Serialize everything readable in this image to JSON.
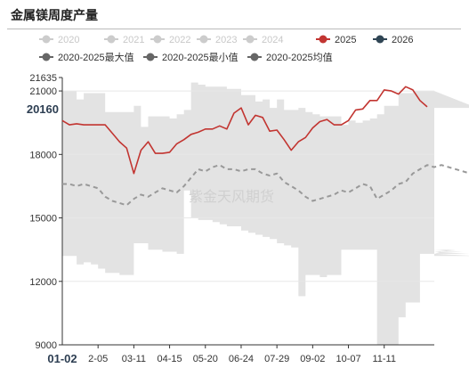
{
  "title": "金属镁周度产量",
  "watermark": "紫金天风期货",
  "chart_data": {
    "type": "line",
    "title": "金属镁周度产量",
    "xlabel": "",
    "ylabel": "",
    "ylim": [
      9000,
      21635
    ],
    "yticks": [
      9000,
      12000,
      15000,
      18000,
      21000,
      21635
    ],
    "highlight_y": 20160,
    "x_start_label": "01-02",
    "xticks": [
      "2-05",
      "03-11",
      "04-15",
      "05-20",
      "06-24",
      "07-29",
      "09-02",
      "10-07",
      "11-11"
    ],
    "legend": {
      "position": "top",
      "items": [
        {
          "name": "2020",
          "color": "#cccccc",
          "active": false
        },
        {
          "name": "2021",
          "color": "#cccccc",
          "active": false
        },
        {
          "name": "2022",
          "color": "#cccccc",
          "active": false
        },
        {
          "name": "2023",
          "color": "#cccccc",
          "active": false
        },
        {
          "name": "2024",
          "color": "#cccccc",
          "active": false
        },
        {
          "name": "2025",
          "color": "#c23531",
          "active": true
        },
        {
          "name": "2026",
          "color": "#2f4554",
          "active": true
        },
        {
          "name": "2020-2025最大值",
          "color": "#666666",
          "active": true
        },
        {
          "name": "2020-2025最小值",
          "color": "#666666",
          "active": true
        },
        {
          "name": "2020-2025均值",
          "color": "#666666",
          "active": true
        }
      ]
    },
    "band_max": [
      21000,
      21000,
      20600,
      20900,
      20900,
      20900,
      20000,
      20000,
      20000,
      20000,
      20300,
      19300,
      19800,
      19800,
      19800,
      19700,
      19900,
      20100,
      21400,
      21300,
      21200,
      21200,
      21200,
      21100,
      21100,
      20800,
      20800,
      20500,
      20600,
      20200,
      20600,
      20100,
      20100,
      20200,
      20000,
      19900,
      19800,
      19800,
      19800,
      19400,
      19600,
      19500,
      19600,
      19700,
      19900,
      20300,
      20300,
      20900,
      20900,
      21000,
      21000,
      21000,
      21000,
      21000,
      21000,
      21000,
      21000,
      21000,
      20200
    ],
    "band_min": [
      13200,
      13200,
      12800,
      12900,
      12800,
      12600,
      12400,
      12400,
      12300,
      12300,
      13800,
      13800,
      13500,
      13500,
      13400,
      13400,
      13300,
      16300,
      15000,
      14900,
      14900,
      14800,
      14700,
      14600,
      14600,
      14400,
      14300,
      14200,
      14100,
      14000,
      13800,
      13700,
      13600,
      11300,
      12300,
      12300,
      12200,
      12300,
      12300,
      13500,
      13500,
      13500,
      13500,
      13500,
      9000,
      9000,
      9000,
      10300,
      11000,
      11000,
      13300,
      13300,
      13300,
      13400,
      13400,
      13500,
      13400,
      13300,
      13200
    ],
    "series": [
      {
        "name": "2025",
        "color": "#c23531",
        "values": [
          19600,
          19400,
          19450,
          19400,
          19400,
          19400,
          19400,
          19000,
          18600,
          18300,
          17100,
          18200,
          18600,
          18050,
          18050,
          18100,
          18500,
          18700,
          18950,
          19050,
          19200,
          19200,
          19350,
          19200,
          19950,
          20200,
          19400,
          19850,
          19750,
          19100,
          19150,
          18700,
          18200,
          18600,
          18800,
          19250,
          19550,
          19650,
          19400,
          19400,
          19600,
          20100,
          20150,
          20550,
          20550,
          21050,
          21000,
          20850,
          21200,
          21050,
          20550,
          20250
        ]
      },
      {
        "name": "2020-2025均值",
        "color": "#999999",
        "dashed": true,
        "values": [
          16600,
          16600,
          16500,
          16600,
          16500,
          16400,
          16000,
          15800,
          15700,
          15600,
          15900,
          16100,
          16000,
          16200,
          16400,
          16300,
          16200,
          16500,
          16900,
          17300,
          17200,
          17400,
          17500,
          17300,
          17300,
          17200,
          17300,
          17300,
          17100,
          17000,
          17100,
          16700,
          16500,
          16300,
          16000,
          15800,
          15900,
          16000,
          16100,
          16300,
          16200,
          16400,
          16600,
          16500,
          15900,
          16100,
          16300,
          16600,
          16700,
          17100,
          17300,
          17500,
          17400,
          17500,
          17400,
          17300,
          17200,
          17100,
          17000
        ]
      }
    ]
  }
}
